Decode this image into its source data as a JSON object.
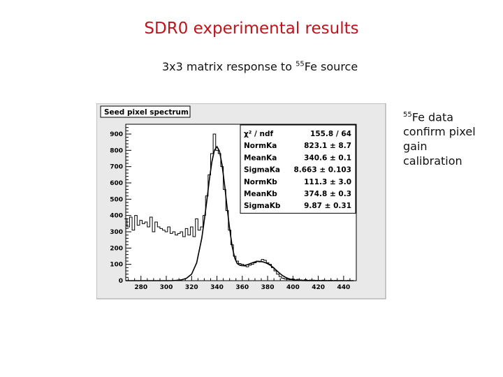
{
  "slide": {
    "title": "SDR0 experimental results",
    "subtitle_main": "3x3 matrix response to ",
    "subtitle_sup": "55",
    "subtitle_end": "Fe source",
    "note_sup": "55",
    "note_lines": [
      "Fe data",
      "confirm pixel",
      "gain",
      "calibration"
    ]
  },
  "chart_data": {
    "type": "line",
    "title": "Seed pixel spectrum",
    "xlabel": "",
    "ylabel": "",
    "xlim": [
      268,
      450
    ],
    "ylim": [
      0,
      960
    ],
    "xticks": [
      280,
      300,
      320,
      340,
      360,
      380,
      400,
      420,
      440
    ],
    "yticks": [
      0,
      100,
      200,
      300,
      400,
      500,
      600,
      700,
      800,
      900
    ],
    "grid": false,
    "stats_box": [
      {
        "label": "χ² / ndf",
        "value": "155.8 / 64"
      },
      {
        "label": "NormKa",
        "value": "823.1 ± 8.7"
      },
      {
        "label": "MeanKa",
        "value": "340.6 ± 0.1"
      },
      {
        "label": "SigmaKa",
        "value": "8.663 ± 0.103"
      },
      {
        "label": "NormKb",
        "value": "111.3 ± 3.0"
      },
      {
        "label": "MeanKb",
        "value": "374.8 ± 0.3"
      },
      {
        "label": "SigmaKb",
        "value": "9.87 ± 0.31"
      }
    ],
    "series": [
      {
        "x": [
          268,
          270,
          272,
          274,
          276,
          278,
          280,
          282,
          284,
          286,
          288,
          290,
          292,
          294,
          296,
          298,
          300,
          302,
          304,
          306,
          308,
          310,
          312,
          314,
          316,
          318,
          320,
          322,
          324,
          326,
          328,
          330,
          332,
          334,
          336,
          338,
          340,
          342,
          344,
          346,
          348,
          350,
          352,
          354,
          356,
          358,
          360,
          362,
          364,
          366,
          368,
          370,
          372,
          374,
          376,
          378,
          380,
          382,
          384,
          386,
          388,
          390,
          392,
          394,
          396,
          398,
          400,
          402,
          404,
          406,
          408,
          410,
          412,
          414,
          416,
          418,
          420,
          422,
          424,
          426,
          428,
          430,
          432,
          434,
          436,
          438,
          440,
          442,
          444,
          446,
          448
        ],
        "y": [
          380,
          330,
          390,
          310,
          400,
          340,
          370,
          350,
          360,
          330,
          390,
          300,
          360,
          330,
          320,
          310,
          300,
          330,
          290,
          300,
          280,
          290,
          300,
          270,
          320,
          280,
          330,
          270,
          380,
          310,
          330,
          400,
          520,
          650,
          780,
          900,
          800,
          780,
          700,
          560,
          430,
          310,
          220,
          150,
          120,
          105,
          100,
          90,
          85,
          95,
          100,
          110,
          120,
          115,
          130,
          125,
          110,
          100,
          80,
          60,
          40,
          25,
          15,
          10,
          8,
          6,
          10,
          4,
          8,
          5,
          3,
          6,
          2,
          4,
          3,
          2,
          2,
          1,
          3,
          1,
          1,
          2,
          0,
          1,
          0,
          1,
          0,
          0,
          1,
          0,
          0
        ]
      },
      {
        "x": [
          268,
          272,
          276,
          280,
          284,
          288,
          292,
          296,
          300,
          304,
          308,
          312,
          316,
          320,
          324,
          328,
          330,
          332,
          334,
          336,
          338,
          340,
          342,
          344,
          346,
          348,
          350,
          352,
          354,
          356,
          358,
          360,
          362,
          364,
          366,
          368,
          370,
          372,
          374,
          376,
          378,
          380,
          382,
          384,
          386,
          388,
          390,
          392,
          394,
          396,
          398,
          400,
          404,
          408,
          412,
          416,
          420,
          430,
          440,
          448
        ],
        "y": [
          0,
          0,
          0,
          0,
          0,
          0,
          0,
          0,
          0,
          0,
          2,
          5,
          15,
          40,
          110,
          260,
          370,
          490,
          620,
          730,
          800,
          823,
          795,
          712,
          590,
          450,
          320,
          210,
          140,
          105,
          95,
          92,
          94,
          98,
          104,
          110,
          115,
          118,
          118,
          116,
          111,
          104,
          95,
          84,
          70,
          56,
          42,
          30,
          21,
          14,
          9,
          6,
          2,
          1,
          0,
          0,
          0,
          0,
          0,
          0
        ]
      }
    ]
  }
}
